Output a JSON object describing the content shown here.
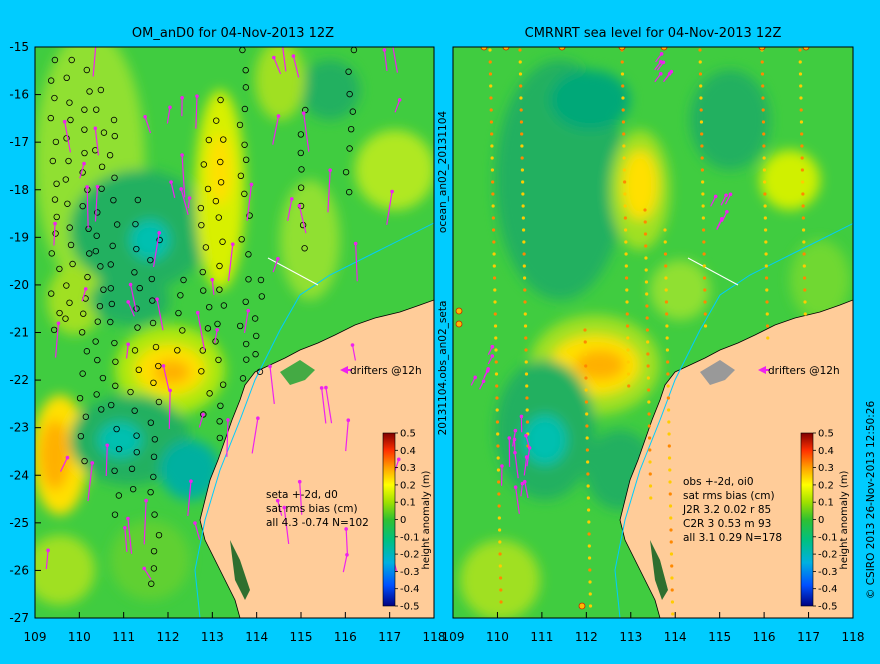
{
  "left_panel": {
    "title": "OM_anD0 for 04-Nov-2013 12Z",
    "x_ticks": [
      "109",
      "110",
      "111",
      "112",
      "113",
      "114",
      "115",
      "116",
      "117",
      "118"
    ],
    "y_ticks": [
      "-15",
      "-16",
      "-17",
      "-18",
      "-19",
      "-20",
      "-21",
      "-22",
      "-23",
      "-24",
      "-25",
      "-26",
      "-27"
    ],
    "drifters_label": "drifters @12h",
    "stats": [
      "seta +-2d, d0",
      "sat rms bias (cm)",
      "all 4.3 -0.74 N=102"
    ],
    "colorbar": {
      "ticks": [
        "0.5",
        "0.4",
        "0.3",
        "0.2",
        "0.1",
        "0",
        "-0.1",
        "-0.2",
        "-0.3",
        "-0.4",
        "-0.5"
      ],
      "label": "height anomaly (m)"
    }
  },
  "right_panel": {
    "title": "CMRNRT sea level  for 04-Nov-2013 12Z",
    "x_ticks": [
      "109",
      "110",
      "111",
      "112",
      "113",
      "114",
      "115",
      "116",
      "117",
      "118"
    ],
    "drifters_label": "drifters @12h",
    "stats": [
      "obs +-2d, oi0",
      "sat rms bias (cm)",
      "J2R   3.2 0.02 r 85",
      "C2R   3 0.53 m 93",
      "all   3.1 0.29 N=178"
    ],
    "colorbar": {
      "ticks": [
        "0.5",
        "0.4",
        "0.3",
        "0.2",
        "0.1",
        "0",
        "-0.1",
        "-0.2",
        "-0.3",
        "-0.4",
        "-0.5"
      ],
      "label": "height anomaly (m)"
    }
  },
  "side_labels": {
    "upper": "ocean_an02_20131104",
    "lower": "20131104.obs_an02_seta",
    "right": "© CSIRO 2013   26-Nov-2013 12:50:26"
  },
  "colors": {
    "background": "#00ccff",
    "land": "#ffcc99",
    "drifters": "#ee22ee",
    "ocean_base": "#40cc40"
  }
}
